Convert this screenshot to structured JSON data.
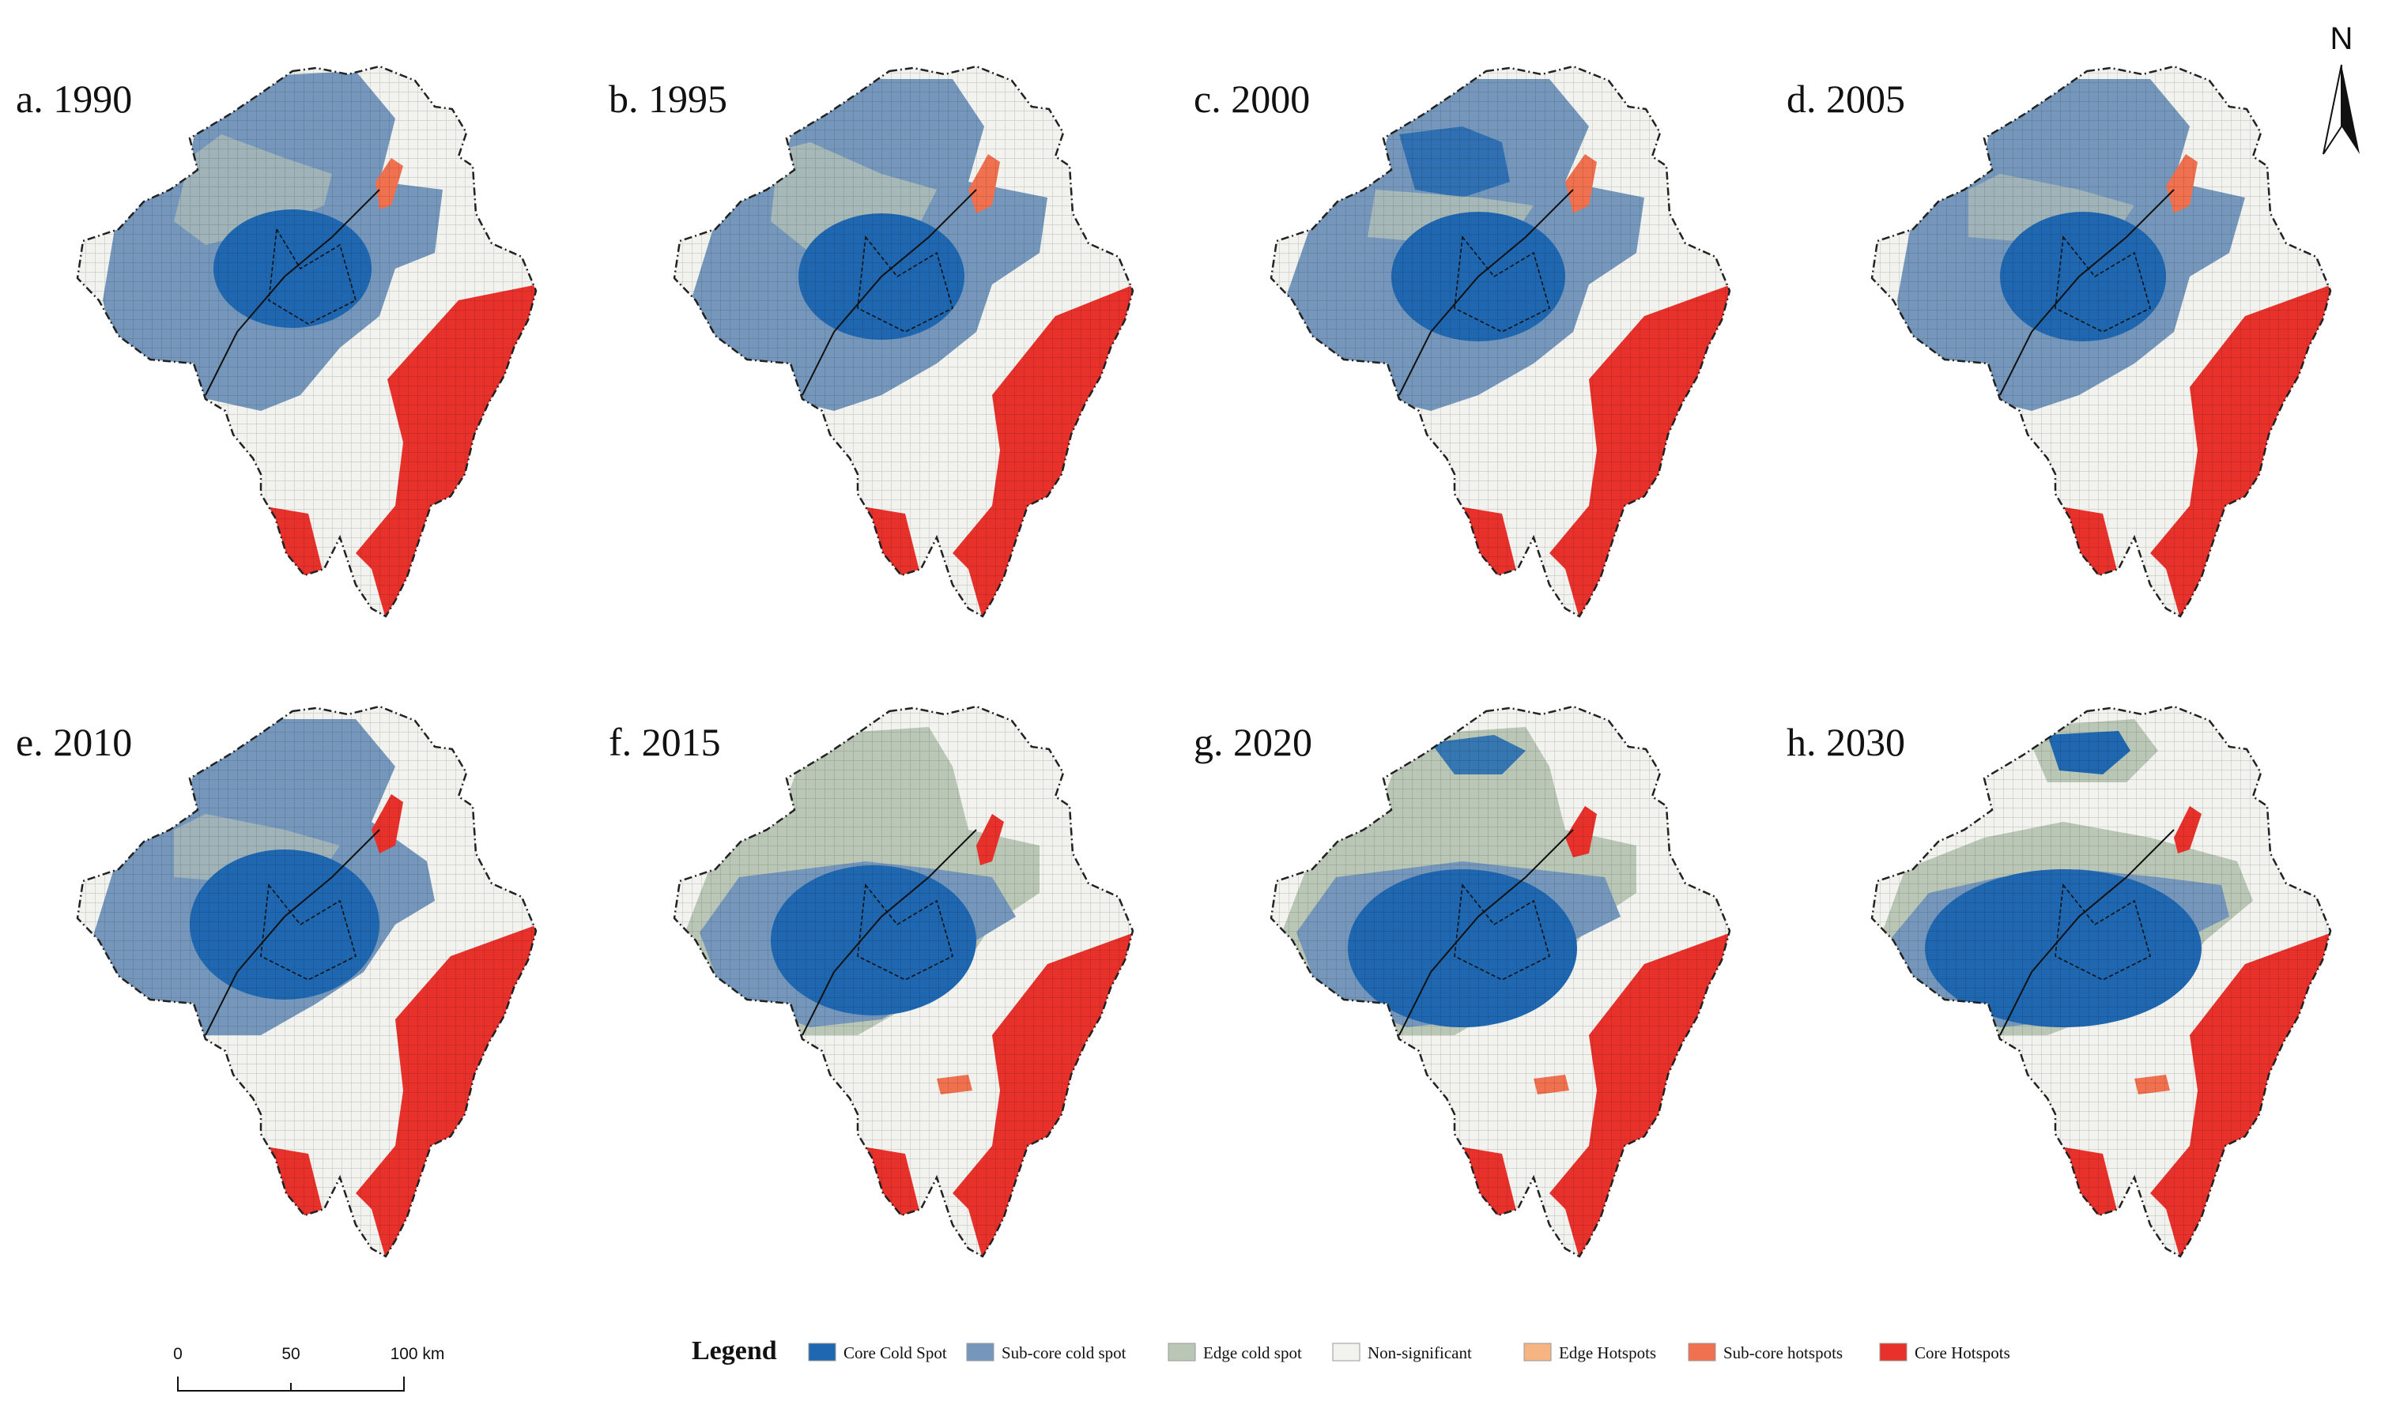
{
  "figure": {
    "panels": [
      {
        "title": "a. 1990"
      },
      {
        "title": "b. 1995"
      },
      {
        "title": "c. 2000"
      },
      {
        "title": "d. 2005"
      },
      {
        "title": "e. 2010"
      },
      {
        "title": "f. 2015"
      },
      {
        "title": "g. 2020"
      },
      {
        "title": "h. 2030"
      }
    ]
  },
  "legend": {
    "title": "Legend",
    "items": [
      {
        "label": "Core Cold Spot",
        "color": "#1f67b0"
      },
      {
        "label": "Sub-core cold spot",
        "color": "#7597bb"
      },
      {
        "label": "Edge cold spot",
        "color": "#bac7b6"
      },
      {
        "label": "Non-significant",
        "color": "#f2f2ef"
      },
      {
        "label": "Edge Hotspots",
        "color": "#f6b483"
      },
      {
        "label": "Sub-core hotspots",
        "color": "#f0714f"
      },
      {
        "label": "Core Hotspots",
        "color": "#e8312b"
      }
    ]
  },
  "scale_bar": {
    "labels": [
      "0",
      "50",
      "100 km"
    ]
  },
  "north_arrow": {
    "label": "N"
  }
}
